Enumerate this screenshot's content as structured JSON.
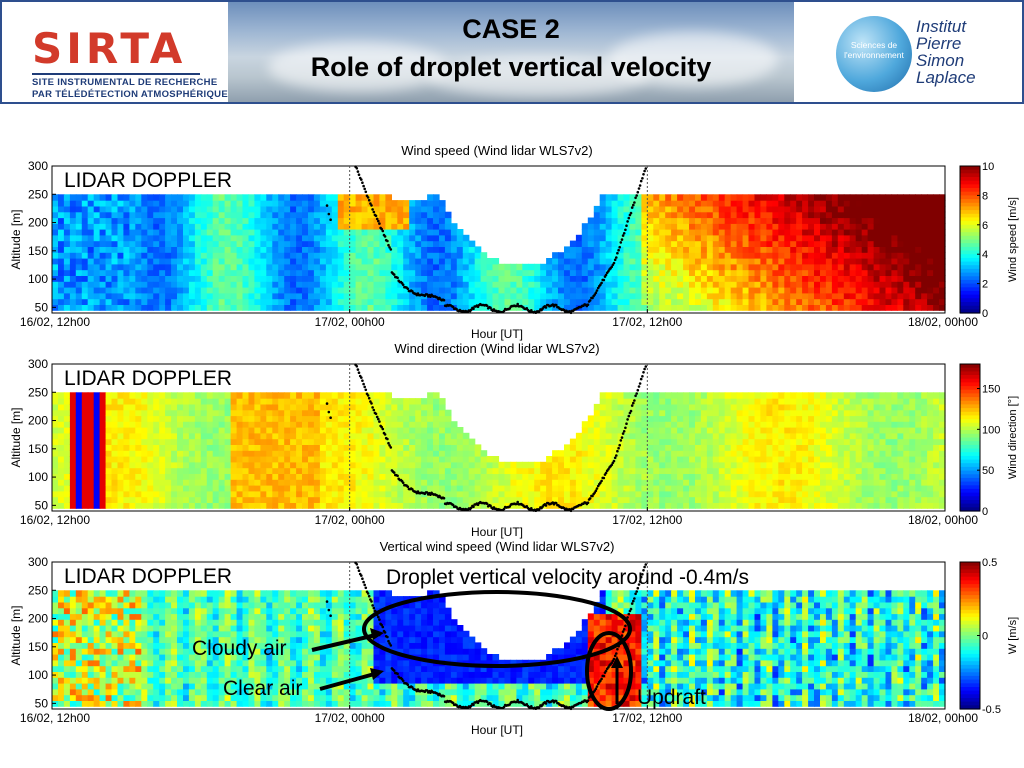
{
  "header": {
    "title_line1": "CASE 2",
    "title_line2": "Role of droplet vertical velocity",
    "logo_left": {
      "name": "SIRTA",
      "subtitle_line1": "SITE INSTRUMENTAL DE RECHERCHE",
      "subtitle_line2": "PAR TÉLÉDÉTECTION ATMOSPHÉRIQUE"
    },
    "logo_right": {
      "globe_text": "Sciences de l'environnement",
      "line1": "Institut",
      "line2": "Pierre",
      "line3": "Simon",
      "line4": "Laplace"
    }
  },
  "chart_data": [
    {
      "type": "heatmap",
      "title": "Wind speed (Wind lidar WLS7v2)",
      "xlabel": "Hour [UT]",
      "ylabel": "Altitude [m]",
      "overlay_label": "LIDAR DOPPLER",
      "x_ticks": [
        "16/02, 12h00",
        "17/02, 00h00",
        "17/02, 12h00",
        "18/02, 00h00"
      ],
      "y_ticks": [
        50,
        100,
        150,
        200,
        250,
        300
      ],
      "ylim": [
        40,
        300
      ],
      "colorbar": {
        "label": "Wind speed [m/s]",
        "ticks": [
          0,
          2,
          4,
          6,
          8,
          10
        ],
        "range": [
          0,
          10
        ]
      },
      "cloud_base_markers": true,
      "annotations": []
    },
    {
      "type": "heatmap",
      "title": "Wind direction (Wind lidar WLS7v2)",
      "xlabel": "Hour [UT]",
      "ylabel": "Altitude [m]",
      "overlay_label": "LIDAR DOPPLER",
      "x_ticks": [
        "16/02, 12h00",
        "17/02, 00h00",
        "17/02, 12h00",
        "18/02, 00h00"
      ],
      "y_ticks": [
        50,
        100,
        150,
        200,
        250,
        300
      ],
      "ylim": [
        40,
        300
      ],
      "colorbar": {
        "label": "Wind direction [°]",
        "ticks": [
          0,
          50,
          100,
          150
        ],
        "range": [
          0,
          180
        ]
      },
      "cloud_base_markers": true,
      "annotations": []
    },
    {
      "type": "heatmap",
      "title": "Vertical wind speed (Wind lidar WLS7v2)",
      "xlabel": "Hour [UT]",
      "ylabel": "Altitude [m]",
      "overlay_label": "LIDAR DOPPLER",
      "x_ticks": [
        "16/02, 12h00",
        "17/02, 00h00",
        "17/02, 12h00",
        "18/02, 00h00"
      ],
      "y_ticks": [
        50,
        100,
        150,
        200,
        250,
        300
      ],
      "ylim": [
        40,
        300
      ],
      "colorbar": {
        "label": "W [m/s]",
        "ticks": [
          -0.5,
          0,
          0.5
        ],
        "range": [
          -0.5,
          0.5
        ]
      },
      "cloud_base_markers": true,
      "annotations": [
        "Droplet vertical velocity around -0.4m/s",
        "Cloudy air",
        "Clear air",
        "Updraft"
      ]
    }
  ]
}
